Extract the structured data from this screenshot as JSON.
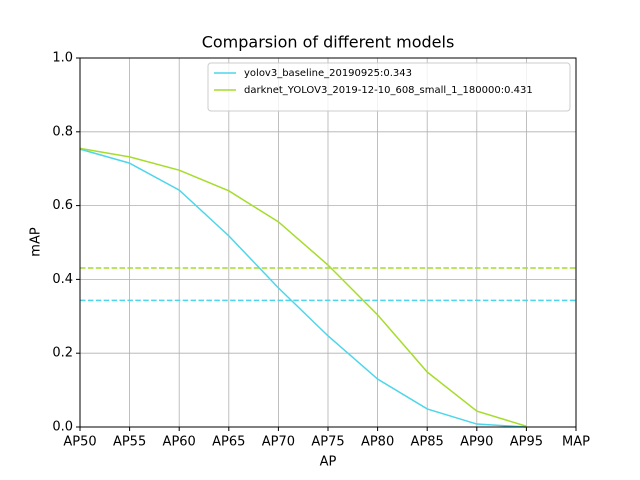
{
  "chart_data": {
    "type": "line",
    "title": "Comparsion of different models",
    "xlabel": "AP",
    "ylabel": "mAP",
    "categories": [
      "AP50",
      "AP55",
      "AP60",
      "AP65",
      "AP70",
      "AP75",
      "AP80",
      "AP85",
      "AP90",
      "AP95",
      "MAP"
    ],
    "series": [
      {
        "name": "yolov3_baseline_20190925:0.343",
        "color": "#4dd6ea",
        "values": [
          0.753,
          0.715,
          0.642,
          0.518,
          0.377,
          0.247,
          0.13,
          0.049,
          0.008,
          0.0,
          null
        ]
      },
      {
        "name": "darknet_YOLOV3_2019-12-10_608_small_1_180000:0.431",
        "color": "#a6dc2b",
        "values": [
          0.755,
          0.732,
          0.696,
          0.64,
          0.556,
          0.439,
          0.304,
          0.149,
          0.043,
          0.002,
          null
        ]
      }
    ],
    "hlines": [
      {
        "value": 0.343,
        "color": "#4dd6ea",
        "style": "dashed"
      },
      {
        "value": 0.431,
        "color": "#a6dc2b",
        "style": "dashed"
      }
    ],
    "ylim": [
      0,
      1
    ],
    "yticks": [
      {
        "value": 0,
        "label": "0.0"
      },
      0.2,
      0.4,
      0.6,
      0.8,
      {
        "value": 1,
        "label": "1.0"
      }
    ],
    "grid": true,
    "legend": "upper right"
  }
}
